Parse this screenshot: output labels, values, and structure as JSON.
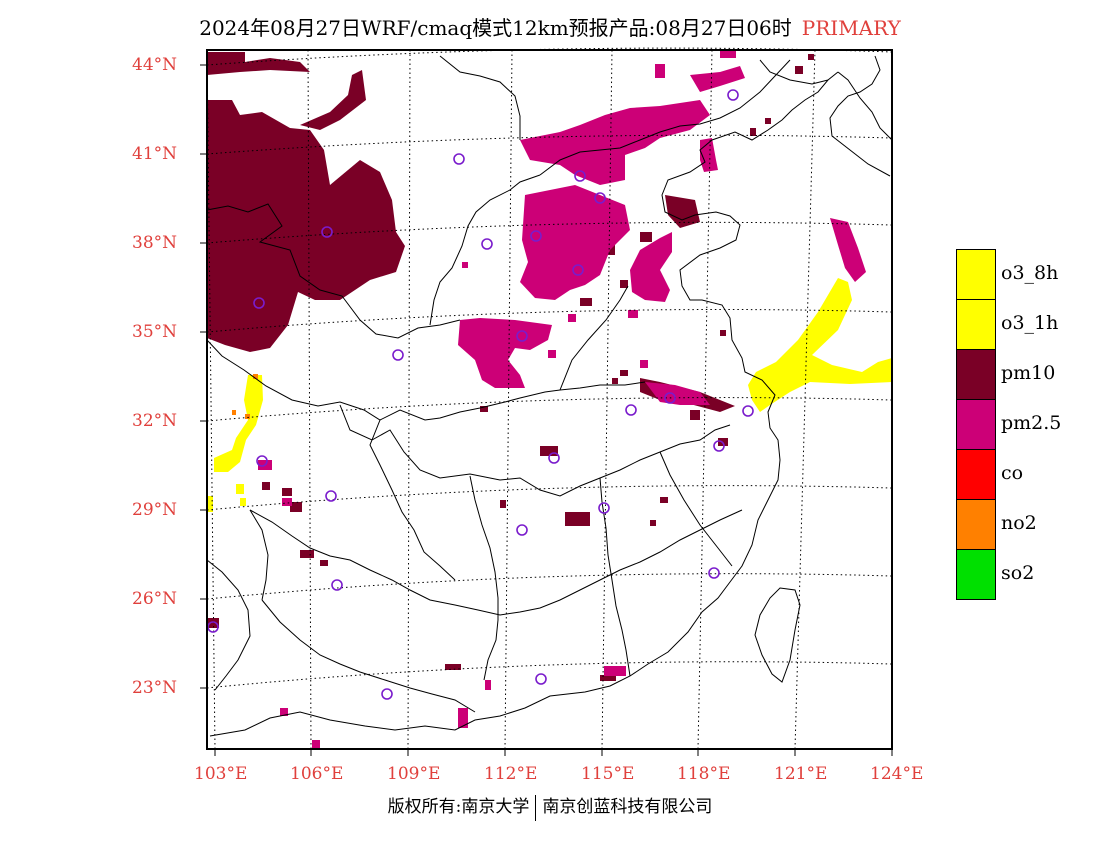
{
  "title": {
    "main": "2024年08月27日WRF/cmaq模式12km预报产品:08月27日06时",
    "tag": "PRIMARY"
  },
  "map": {
    "lat_labels": [
      "44°N",
      "41°N",
      "38°N",
      "35°N",
      "32°N",
      "29°N",
      "26°N",
      "23°N"
    ],
    "lon_labels": [
      "103°E",
      "106°E",
      "109°E",
      "112°E",
      "115°E",
      "118°E",
      "121°E",
      "124°E"
    ],
    "colors": {
      "o3_8h": "#ffff00",
      "o3_1h": "#ffff00",
      "pm10": "#7a0026",
      "pm2_5": "#cc0077",
      "co": "#ff0000",
      "no2": "#ff8000",
      "so2": "#00e000",
      "station": "#7a1ccc",
      "label": "#e0403c"
    }
  },
  "legend": [
    {
      "label": "o3_8h",
      "color": "#ffff00"
    },
    {
      "label": "o3_1h",
      "color": "#ffff00"
    },
    {
      "label": "pm10",
      "color": "#7a0026"
    },
    {
      "label": "pm2.5",
      "color": "#cc0077"
    },
    {
      "label": "co",
      "color": "#ff0000"
    },
    {
      "label": "no2",
      "color": "#ff8000"
    },
    {
      "label": "so2",
      "color": "#00e000"
    }
  ],
  "footer": {
    "copyright_left": "版权所有:南京大学",
    "copyright_right": "南京创蓝科技有限公司"
  }
}
